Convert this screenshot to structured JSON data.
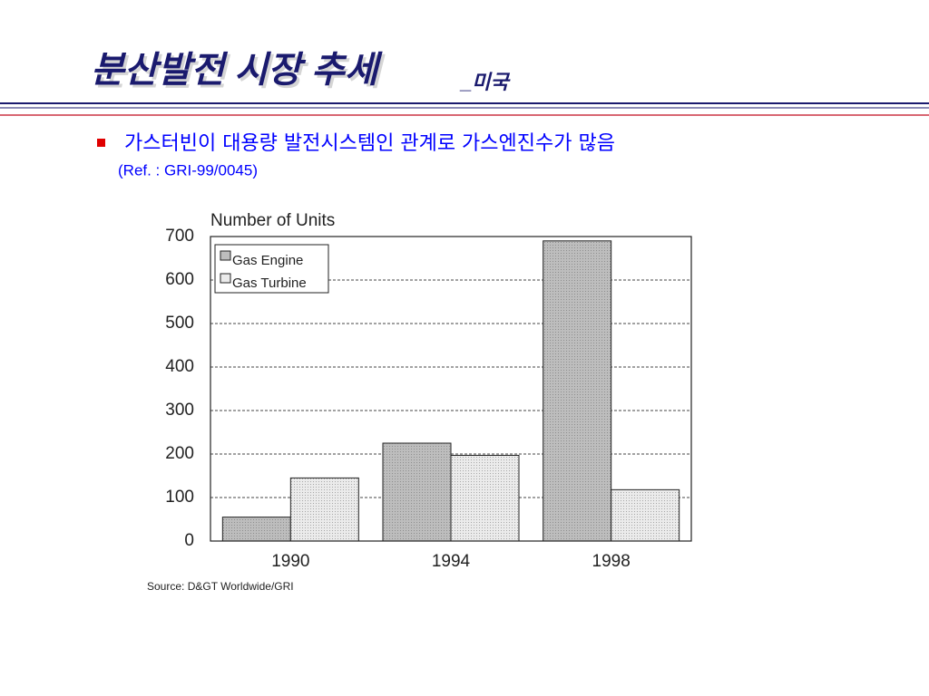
{
  "header": {
    "title": "분산발전 시장 추세",
    "title_suffix": "_미국"
  },
  "bullet": {
    "text": "가스터빈이 대용량 발전시스템인 관계로 가스엔진수가 많음",
    "reference": "(Ref. : GRI-99/0045)"
  },
  "chart_data": {
    "type": "bar",
    "y_label": "Number of Units",
    "source": "Source: D&GT Worldwide/GRI",
    "categories": [
      "1990",
      "1994",
      "1998"
    ],
    "series": [
      {
        "name": "Gas Engine",
        "color": "#bdbdbd",
        "values": [
          55,
          225,
          690
        ]
      },
      {
        "name": "Gas Turbine",
        "color": "#ebebeb",
        "values": [
          145,
          197,
          118
        ]
      }
    ],
    "ylim": [
      0,
      700
    ],
    "yticks": [
      0,
      100,
      200,
      300,
      400,
      500,
      600,
      700
    ],
    "grid": true,
    "legend": "top-left"
  }
}
